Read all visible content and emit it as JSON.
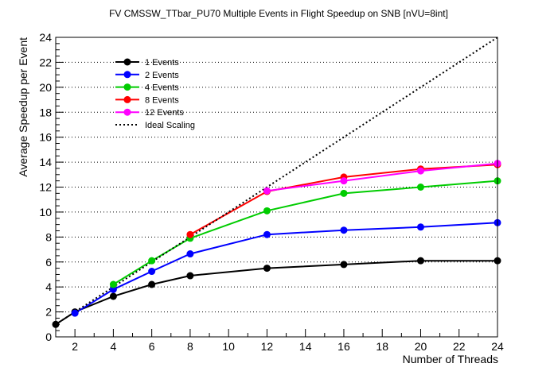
{
  "chart_data": {
    "type": "line",
    "title": "FV CMSSW_TTbar_PU70 Multiple Events in Flight Speedup on SNB [nVU=8int]",
    "xlabel": "Number of Threads",
    "ylabel": "Average Speedup per Event",
    "xlim": [
      1,
      24
    ],
    "ylim": [
      0,
      24
    ],
    "x_ticks": [
      2,
      4,
      6,
      8,
      10,
      12,
      14,
      16,
      18,
      20,
      22,
      24
    ],
    "y_ticks": [
      0,
      2,
      4,
      6,
      8,
      10,
      12,
      14,
      16,
      18,
      20,
      22,
      24
    ],
    "grid": "horizontal dotted",
    "legend_position": "top-left",
    "series": [
      {
        "name": "1 Events",
        "color": "#000000",
        "style": "solid-markers",
        "x": [
          1,
          2,
          4,
          6,
          8,
          12,
          16,
          20,
          24
        ],
        "y": [
          1.0,
          2.0,
          3.25,
          4.2,
          4.9,
          5.5,
          5.8,
          6.1,
          6.1
        ]
      },
      {
        "name": "2 Events",
        "color": "#0000ff",
        "style": "solid-markers",
        "x": [
          2,
          4,
          6,
          8,
          12,
          16,
          20,
          24
        ],
        "y": [
          1.9,
          3.8,
          5.25,
          6.65,
          8.2,
          8.55,
          8.8,
          9.15
        ]
      },
      {
        "name": "4 Events",
        "color": "#00cc00",
        "style": "solid-markers",
        "x": [
          4,
          6,
          8,
          12,
          16,
          20,
          24
        ],
        "y": [
          4.2,
          6.1,
          7.9,
          10.1,
          11.5,
          12.0,
          12.5
        ]
      },
      {
        "name": "8 Events",
        "color": "#ff0000",
        "style": "solid-markers",
        "x": [
          8,
          12,
          16,
          20,
          24
        ],
        "y": [
          8.2,
          11.65,
          12.8,
          13.45,
          13.8
        ]
      },
      {
        "name": "12 Events",
        "color": "#ff00ff",
        "style": "solid-markers",
        "x": [
          12,
          16,
          20,
          24
        ],
        "y": [
          11.7,
          12.5,
          13.3,
          13.9
        ]
      },
      {
        "name": "Ideal Scaling",
        "color": "#000000",
        "style": "dotted",
        "x": [
          1,
          24
        ],
        "y": [
          1,
          24
        ]
      }
    ]
  }
}
